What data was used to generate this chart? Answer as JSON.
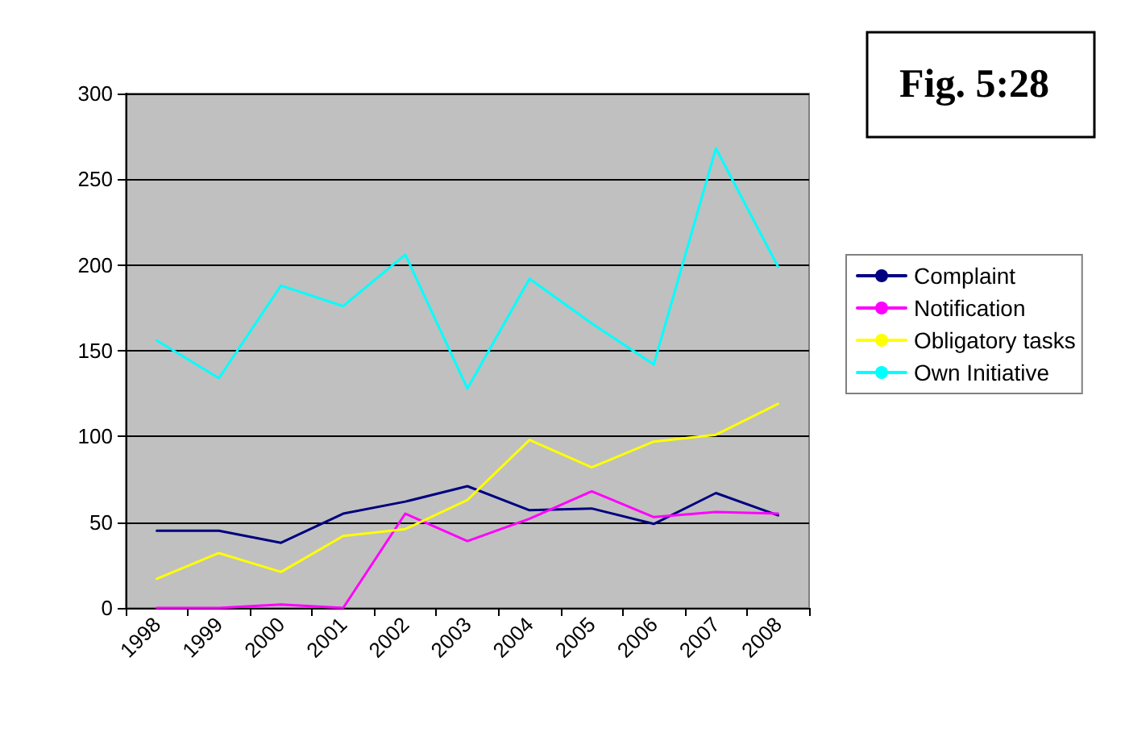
{
  "chart_data": {
    "type": "line",
    "title": "Fig. 5:28",
    "categories": [
      "1998",
      "1999",
      "2000",
      "2001",
      "2002",
      "2003",
      "2004",
      "2005",
      "2006",
      "2007",
      "2008"
    ],
    "series": [
      {
        "name": "Complaint",
        "color": "#000080",
        "values": [
          45,
          45,
          38,
          55,
          62,
          71,
          57,
          58,
          49,
          67,
          54
        ]
      },
      {
        "name": "Notification",
        "color": "#ff00ff",
        "values": [
          0,
          0,
          2,
          0,
          55,
          39,
          52,
          68,
          53,
          56,
          55
        ]
      },
      {
        "name": "Obligatory tasks",
        "color": "#ffff00",
        "values": [
          17,
          32,
          21,
          42,
          46,
          63,
          98,
          82,
          97,
          101,
          119
        ]
      },
      {
        "name": "Own Initiative",
        "color": "#00ffff",
        "values": [
          156,
          134,
          188,
          176,
          206,
          128,
          192,
          166,
          142,
          268,
          199
        ]
      }
    ],
    "ylim": [
      0,
      300
    ],
    "yticks": [
      0,
      50,
      100,
      150,
      200,
      250,
      300
    ],
    "grid": "y",
    "legend": "right",
    "marker": "none",
    "line_style": "solid"
  }
}
